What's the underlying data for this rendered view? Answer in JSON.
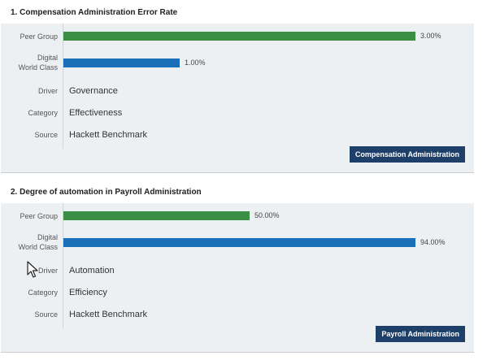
{
  "metrics": [
    {
      "title": "1.  Compensation Administration Error Rate",
      "peer_label": "Peer Group",
      "peer_value": "3.00%",
      "peer_fraction": 1.0,
      "dwc_label_line1": "Digital",
      "dwc_label_line2": "World Class",
      "dwc_value": "1.00%",
      "dwc_fraction": 0.33,
      "driver_label": "Driver",
      "driver": "Governance",
      "category_label": "Category",
      "category": "Effectiveness",
      "source_label": "Source",
      "source": "Hackett Benchmark",
      "button": "Compensation Administration"
    },
    {
      "title": "2.  Degree of automation in Payroll Administration",
      "peer_label": "Peer Group",
      "peer_value": "50.00%",
      "peer_fraction": 0.53,
      "dwc_label_line1": "Digital",
      "dwc_label_line2": "World Class",
      "dwc_value": "94.00%",
      "dwc_fraction": 1.0,
      "driver_label": "Driver",
      "driver": "Automation",
      "category_label": "Category",
      "category": "Efficiency",
      "source_label": "Source",
      "source": "Hackett Benchmark",
      "button": "Payroll Administration"
    }
  ],
  "colors": {
    "peer_bar": "#3a8f44",
    "dwc_bar": "#1a6fb8",
    "button_bg": "#1f3f6b",
    "panel_bg": "#edf0f3"
  },
  "icons": [
    "mouse-cursor-icon"
  ]
}
